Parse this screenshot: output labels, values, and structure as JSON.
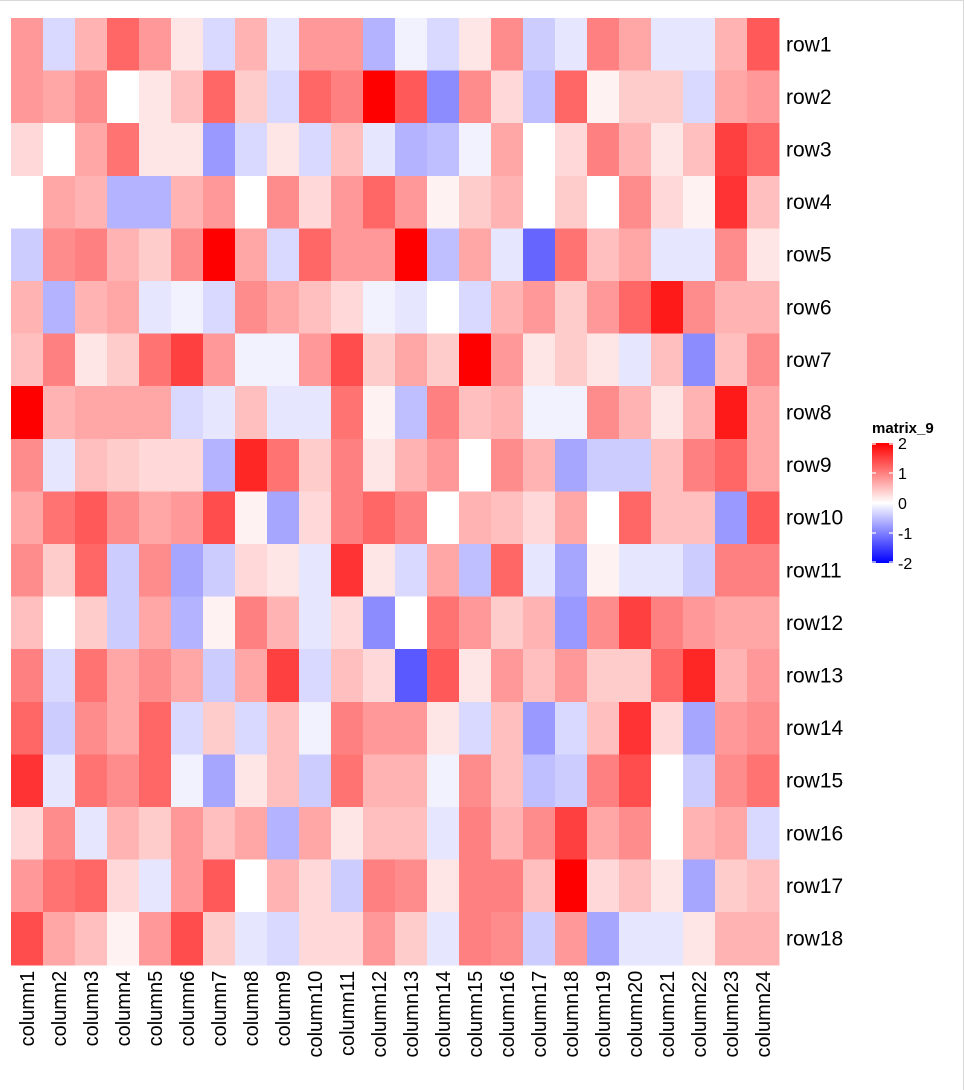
{
  "chart_data": {
    "type": "heatmap",
    "title": "",
    "rows": [
      "row1",
      "row2",
      "row3",
      "row4",
      "row5",
      "row6",
      "row7",
      "row8",
      "row9",
      "row10",
      "row11",
      "row12",
      "row13",
      "row14",
      "row15",
      "row16",
      "row17",
      "row18"
    ],
    "columns": [
      "column1",
      "column2",
      "column3",
      "column4",
      "column5",
      "column6",
      "column7",
      "column8",
      "column9",
      "column10",
      "column11",
      "column12",
      "column13",
      "column14",
      "column15",
      "column16",
      "column17",
      "column18",
      "column19",
      "column20",
      "column21",
      "column22",
      "column23",
      "column24"
    ],
    "values": [
      [
        0.8,
        -0.3,
        0.6,
        1.2,
        0.8,
        0.2,
        -0.3,
        0.6,
        -0.2,
        0.8,
        0.8,
        -0.6,
        -0.1,
        -0.3,
        0.2,
        0.9,
        -0.4,
        -0.2,
        1.0,
        0.7,
        -0.2,
        -0.2,
        0.6,
        1.3
      ],
      [
        0.8,
        0.7,
        0.9,
        0.0,
        0.2,
        0.5,
        1.2,
        0.4,
        -0.3,
        1.2,
        1.0,
        2.2,
        1.3,
        -0.9,
        0.9,
        0.3,
        -0.5,
        1.2,
        0.1,
        0.4,
        0.4,
        -0.3,
        0.7,
        0.8
      ],
      [
        0.3,
        0.0,
        0.7,
        1.1,
        0.2,
        0.2,
        -0.8,
        -0.3,
        0.2,
        -0.3,
        0.5,
        -0.2,
        -0.6,
        -0.5,
        -0.1,
        0.7,
        0.0,
        0.3,
        1.0,
        0.6,
        0.2,
        0.5,
        1.5,
        1.2
      ],
      [
        0.0,
        0.7,
        0.6,
        -0.6,
        -0.6,
        0.6,
        0.8,
        0.0,
        0.9,
        0.3,
        0.8,
        1.2,
        0.8,
        0.1,
        0.4,
        0.6,
        0.0,
        0.4,
        0.0,
        0.9,
        0.3,
        0.1,
        1.6,
        0.5
      ],
      [
        -0.4,
        0.9,
        1.0,
        0.6,
        0.4,
        0.9,
        2.2,
        0.7,
        -0.3,
        1.2,
        0.8,
        0.8,
        2.0,
        -0.5,
        0.7,
        -0.2,
        -1.2,
        1.1,
        0.5,
        0.7,
        -0.2,
        -0.2,
        0.9,
        0.2
      ],
      [
        0.6,
        -0.6,
        0.6,
        0.7,
        -0.2,
        -0.1,
        -0.3,
        0.9,
        0.7,
        0.5,
        0.3,
        -0.1,
        -0.2,
        0.0,
        -0.3,
        0.6,
        0.8,
        0.4,
        0.8,
        1.2,
        1.8,
        0.9,
        0.6,
        0.6
      ],
      [
        0.5,
        1.0,
        0.2,
        0.4,
        1.1,
        1.5,
        0.8,
        -0.1,
        -0.1,
        0.8,
        1.4,
        0.4,
        0.7,
        0.4,
        2.2,
        0.8,
        0.2,
        0.4,
        0.2,
        -0.2,
        0.5,
        -0.9,
        0.5,
        0.9
      ],
      [
        2.2,
        0.6,
        0.7,
        0.7,
        0.7,
        -0.3,
        -0.2,
        0.5,
        -0.2,
        -0.2,
        1.1,
        0.1,
        -0.5,
        1.0,
        0.5,
        0.6,
        -0.1,
        -0.1,
        0.9,
        0.6,
        0.2,
        0.6,
        1.8,
        0.7
      ],
      [
        0.9,
        -0.2,
        0.5,
        0.4,
        0.3,
        0.3,
        -0.6,
        1.7,
        1.1,
        0.4,
        1.0,
        0.2,
        0.6,
        0.8,
        0.0,
        0.9,
        0.6,
        -0.7,
        -0.4,
        -0.4,
        0.5,
        1.0,
        1.2,
        0.7
      ],
      [
        0.7,
        1.1,
        1.3,
        0.9,
        0.7,
        0.8,
        1.4,
        0.1,
        -0.7,
        0.3,
        1.0,
        1.2,
        1.0,
        0.0,
        0.6,
        0.5,
        0.3,
        0.7,
        0.0,
        1.2,
        0.5,
        0.5,
        -0.8,
        1.3
      ],
      [
        0.9,
        0.4,
        1.2,
        -0.4,
        0.9,
        -0.7,
        -0.4,
        0.3,
        0.2,
        -0.2,
        1.6,
        0.2,
        -0.3,
        0.7,
        -0.5,
        1.2,
        -0.2,
        -0.7,
        0.1,
        -0.2,
        -0.2,
        -0.4,
        1.0,
        1.0
      ],
      [
        0.5,
        0.0,
        0.4,
        -0.4,
        0.7,
        -0.6,
        0.1,
        1.0,
        0.6,
        -0.2,
        0.3,
        -0.9,
        0.0,
        1.1,
        0.8,
        0.4,
        0.6,
        -0.8,
        0.9,
        1.5,
        1.0,
        0.8,
        0.7,
        0.7
      ],
      [
        1.0,
        -0.3,
        1.1,
        0.7,
        0.9,
        0.7,
        -0.4,
        0.7,
        1.5,
        -0.3,
        0.5,
        0.3,
        -1.3,
        1.3,
        0.2,
        0.8,
        0.5,
        0.8,
        0.4,
        0.4,
        1.2,
        1.7,
        0.6,
        0.8
      ],
      [
        1.2,
        -0.4,
        0.9,
        0.7,
        1.2,
        -0.3,
        0.4,
        -0.3,
        0.5,
        -0.1,
        1.0,
        0.8,
        0.8,
        0.2,
        -0.3,
        0.5,
        -0.8,
        -0.3,
        0.5,
        1.6,
        0.3,
        -0.7,
        0.8,
        0.9
      ],
      [
        1.6,
        -0.2,
        1.1,
        0.9,
        1.2,
        -0.1,
        -0.7,
        0.2,
        0.5,
        -0.4,
        1.1,
        0.6,
        0.6,
        -0.1,
        0.9,
        0.5,
        -0.5,
        -0.4,
        1.0,
        1.4,
        0.0,
        -0.4,
        0.9,
        1.1
      ],
      [
        0.3,
        0.9,
        -0.2,
        0.6,
        0.4,
        0.8,
        0.5,
        0.7,
        -0.6,
        0.7,
        0.2,
        0.5,
        0.5,
        -0.2,
        1.0,
        0.6,
        0.9,
        1.5,
        0.7,
        0.9,
        0.0,
        0.6,
        0.7,
        -0.3
      ],
      [
        0.8,
        1.1,
        1.2,
        0.3,
        -0.2,
        0.8,
        1.3,
        0.0,
        0.6,
        0.3,
        -0.4,
        1.0,
        0.9,
        0.2,
        1.0,
        1.0,
        0.5,
        2.2,
        0.3,
        0.5,
        0.2,
        -0.7,
        0.4,
        0.5
      ],
      [
        1.4,
        0.7,
        0.5,
        0.1,
        0.8,
        1.4,
        0.4,
        -0.2,
        -0.3,
        0.3,
        0.3,
        0.8,
        0.4,
        -0.2,
        1.0,
        0.9,
        -0.4,
        0.8,
        -0.7,
        -0.2,
        -0.2,
        0.2,
        0.6,
        0.6
      ]
    ],
    "color_scale": {
      "min": -2,
      "mid": 0,
      "max": 2,
      "low_color": "#0000ff",
      "mid_color": "#ffffff",
      "high_color": "#ff0000"
    },
    "legend": {
      "title": "matrix_9",
      "ticks": [
        "2",
        "1",
        "0",
        "-1",
        "-2"
      ],
      "tick_values": [
        2,
        1,
        0,
        -1,
        -2
      ],
      "placement": "right"
    },
    "xlabel": "",
    "ylabel": ""
  }
}
